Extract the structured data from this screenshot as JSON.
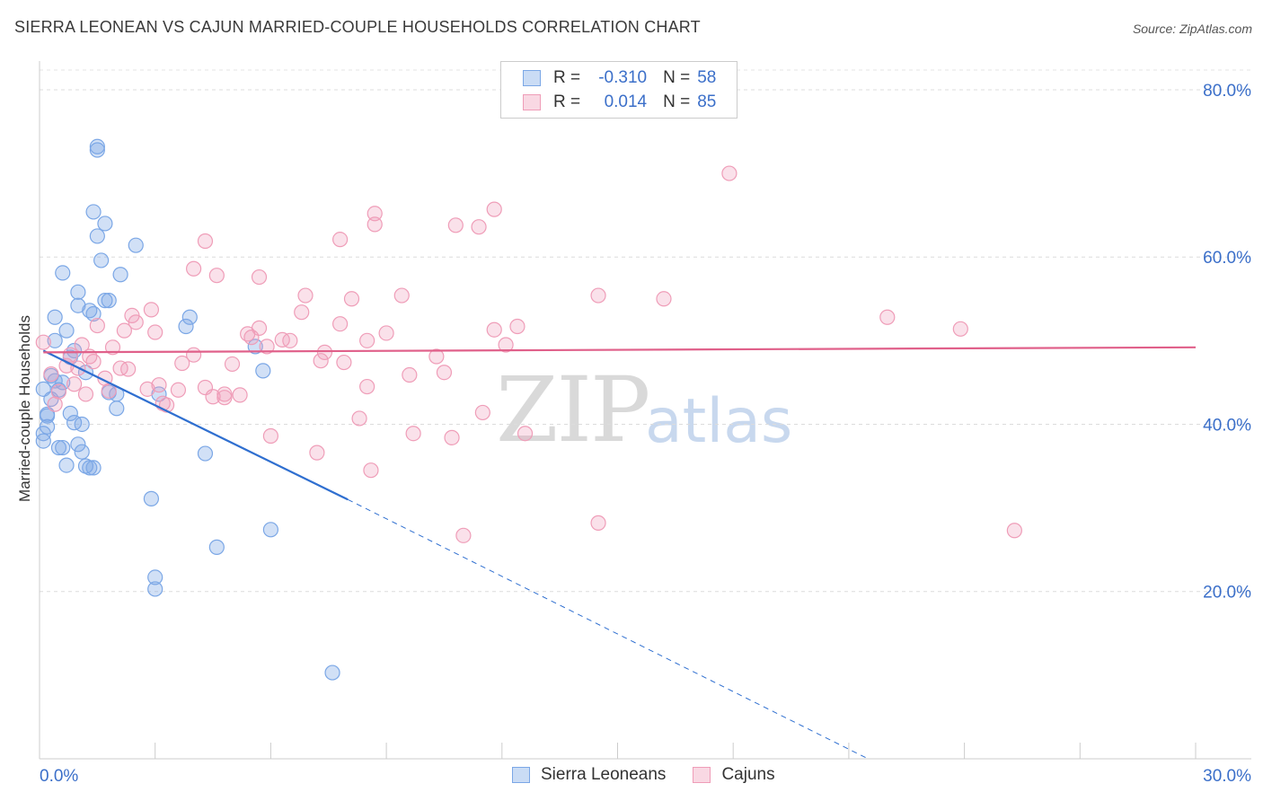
{
  "title": "SIERRA LEONEAN VS CAJUN MARRIED-COUPLE HOUSEHOLDS CORRELATION CHART",
  "source": "Source: ZipAtlas.com",
  "watermark": {
    "zip": "ZIP",
    "atlas": "atlas"
  },
  "colors": {
    "blue": "#7ba7e6",
    "blue_fill": "rgba(123,167,230,0.35)",
    "blue_line": "#2f6fd0",
    "pink": "#ef9db8",
    "pink_fill": "rgba(239,157,184,0.30)",
    "pink_line": "#e0608a",
    "tick_text": "#3b6fc9"
  },
  "legend_top": [
    {
      "r_label": "R =",
      "r_value": "-0.310",
      "n_label": "N =",
      "n_value": "58"
    },
    {
      "r_label": "R =",
      "r_value": "0.014",
      "n_label": "N =",
      "n_value": "85"
    }
  ],
  "chart_data": {
    "type": "scatter",
    "title": "SIERRA LEONEAN VS CAJUN MARRIED-COUPLE HOUSEHOLDS CORRELATION CHART",
    "xlabel": "",
    "ylabel": "Married-couple Households",
    "xlim": [
      0,
      30
    ],
    "ylim": [
      0,
      83
    ],
    "x_tick_labels": [
      "0.0%",
      "30.0%"
    ],
    "y_tick_labels": [
      "20.0%",
      "40.0%",
      "60.0%",
      "80.0%"
    ],
    "y_ticks": [
      20,
      40,
      60,
      80
    ],
    "grid": true,
    "series": [
      {
        "name": "Sierra Leoneans",
        "points": [
          [
            0.1,
            44.2
          ],
          [
            0.1,
            38.9
          ],
          [
            0.1,
            38.0
          ],
          [
            0.2,
            39.7
          ],
          [
            0.2,
            41.2
          ],
          [
            0.3,
            45.8
          ],
          [
            0.3,
            43.0
          ],
          [
            0.4,
            52.8
          ],
          [
            0.4,
            50.0
          ],
          [
            0.4,
            45.2
          ],
          [
            0.5,
            44.1
          ],
          [
            0.5,
            37.2
          ],
          [
            0.6,
            58.1
          ],
          [
            0.6,
            45.0
          ],
          [
            0.6,
            37.2
          ],
          [
            0.7,
            35.1
          ],
          [
            0.7,
            51.2
          ],
          [
            0.8,
            48.0
          ],
          [
            0.8,
            41.3
          ],
          [
            0.9,
            40.2
          ],
          [
            0.9,
            48.8
          ],
          [
            1.0,
            54.2
          ],
          [
            1.0,
            37.6
          ],
          [
            1.0,
            55.8
          ],
          [
            1.1,
            36.7
          ],
          [
            1.1,
            40.0
          ],
          [
            1.2,
            46.2
          ],
          [
            1.2,
            35.0
          ],
          [
            1.3,
            53.6
          ],
          [
            1.3,
            34.8
          ],
          [
            1.4,
            34.8
          ],
          [
            1.4,
            53.2
          ],
          [
            1.4,
            65.4
          ],
          [
            1.5,
            62.5
          ],
          [
            1.5,
            73.2
          ],
          [
            1.5,
            72.8
          ],
          [
            1.6,
            59.6
          ],
          [
            1.7,
            64.0
          ],
          [
            1.7,
            54.8
          ],
          [
            1.8,
            54.8
          ],
          [
            1.8,
            43.8
          ],
          [
            2.0,
            41.9
          ],
          [
            2.0,
            43.6
          ],
          [
            2.1,
            57.9
          ],
          [
            2.5,
            61.4
          ],
          [
            2.9,
            31.1
          ],
          [
            3.0,
            21.7
          ],
          [
            3.0,
            20.3
          ],
          [
            3.1,
            43.6
          ],
          [
            3.8,
            51.7
          ],
          [
            3.9,
            52.8
          ],
          [
            4.3,
            36.5
          ],
          [
            4.6,
            25.3
          ],
          [
            5.6,
            49.3
          ],
          [
            5.8,
            46.4
          ],
          [
            6.0,
            27.4
          ],
          [
            7.6,
            10.3
          ],
          [
            0.2,
            41.0
          ]
        ]
      },
      {
        "name": "Cajuns",
        "points": [
          [
            0.1,
            49.8
          ],
          [
            0.3,
            46.0
          ],
          [
            0.4,
            42.4
          ],
          [
            0.5,
            43.9
          ],
          [
            0.7,
            47.0
          ],
          [
            0.8,
            48.3
          ],
          [
            0.9,
            44.8
          ],
          [
            1.0,
            46.7
          ],
          [
            1.1,
            49.5
          ],
          [
            1.2,
            43.6
          ],
          [
            1.3,
            48.1
          ],
          [
            1.4,
            47.5
          ],
          [
            1.5,
            51.8
          ],
          [
            1.7,
            45.5
          ],
          [
            1.8,
            44.0
          ],
          [
            1.9,
            49.2
          ],
          [
            2.1,
            46.7
          ],
          [
            2.2,
            51.2
          ],
          [
            2.3,
            46.6
          ],
          [
            2.4,
            53.0
          ],
          [
            2.5,
            52.2
          ],
          [
            2.8,
            44.2
          ],
          [
            2.9,
            53.7
          ],
          [
            3.0,
            51.0
          ],
          [
            3.1,
            44.7
          ],
          [
            3.2,
            42.5
          ],
          [
            3.3,
            42.3
          ],
          [
            3.6,
            44.1
          ],
          [
            3.7,
            47.3
          ],
          [
            4.0,
            48.3
          ],
          [
            4.0,
            58.6
          ],
          [
            4.3,
            44.4
          ],
          [
            4.3,
            61.9
          ],
          [
            4.5,
            43.3
          ],
          [
            4.6,
            57.8
          ],
          [
            4.8,
            43.2
          ],
          [
            4.8,
            43.6
          ],
          [
            5.0,
            47.2
          ],
          [
            5.2,
            43.5
          ],
          [
            5.4,
            50.8
          ],
          [
            5.5,
            50.4
          ],
          [
            5.7,
            51.5
          ],
          [
            5.7,
            57.6
          ],
          [
            5.9,
            49.3
          ],
          [
            6.0,
            38.6
          ],
          [
            6.3,
            50.1
          ],
          [
            6.8,
            53.4
          ],
          [
            6.9,
            55.4
          ],
          [
            7.2,
            36.6
          ],
          [
            7.3,
            47.6
          ],
          [
            7.4,
            48.6
          ],
          [
            7.8,
            52.0
          ],
          [
            7.8,
            62.1
          ],
          [
            7.9,
            47.4
          ],
          [
            8.1,
            55.0
          ],
          [
            8.3,
            40.7
          ],
          [
            8.5,
            44.5
          ],
          [
            8.5,
            50.0
          ],
          [
            8.6,
            34.5
          ],
          [
            8.7,
            63.9
          ],
          [
            8.7,
            65.2
          ],
          [
            9.0,
            50.9
          ],
          [
            9.4,
            55.4
          ],
          [
            9.6,
            45.9
          ],
          [
            9.7,
            38.9
          ],
          [
            10.3,
            48.1
          ],
          [
            10.5,
            46.2
          ],
          [
            10.7,
            38.4
          ],
          [
            10.8,
            63.8
          ],
          [
            11.0,
            26.7
          ],
          [
            11.4,
            63.6
          ],
          [
            11.5,
            41.4
          ],
          [
            11.8,
            65.7
          ],
          [
            11.8,
            51.3
          ],
          [
            12.1,
            49.5
          ],
          [
            12.4,
            51.7
          ],
          [
            12.6,
            38.9
          ],
          [
            14.5,
            55.4
          ],
          [
            14.5,
            28.2
          ],
          [
            16.2,
            55.0
          ],
          [
            17.9,
            70.0
          ],
          [
            22.0,
            52.8
          ],
          [
            23.9,
            51.4
          ],
          [
            25.3,
            27.3
          ],
          [
            6.5,
            50.0
          ]
        ]
      }
    ],
    "trend_lines": [
      {
        "series": "Sierra Leoneans",
        "solid": [
          [
            0.1,
            48.8
          ],
          [
            8.0,
            31.0
          ]
        ],
        "dashed": [
          [
            8.0,
            31.0
          ],
          [
            21.5,
            0
          ]
        ]
      },
      {
        "series": "Cajuns",
        "solid": [
          [
            0.1,
            48.6
          ],
          [
            30.0,
            49.2
          ]
        ]
      }
    ]
  }
}
